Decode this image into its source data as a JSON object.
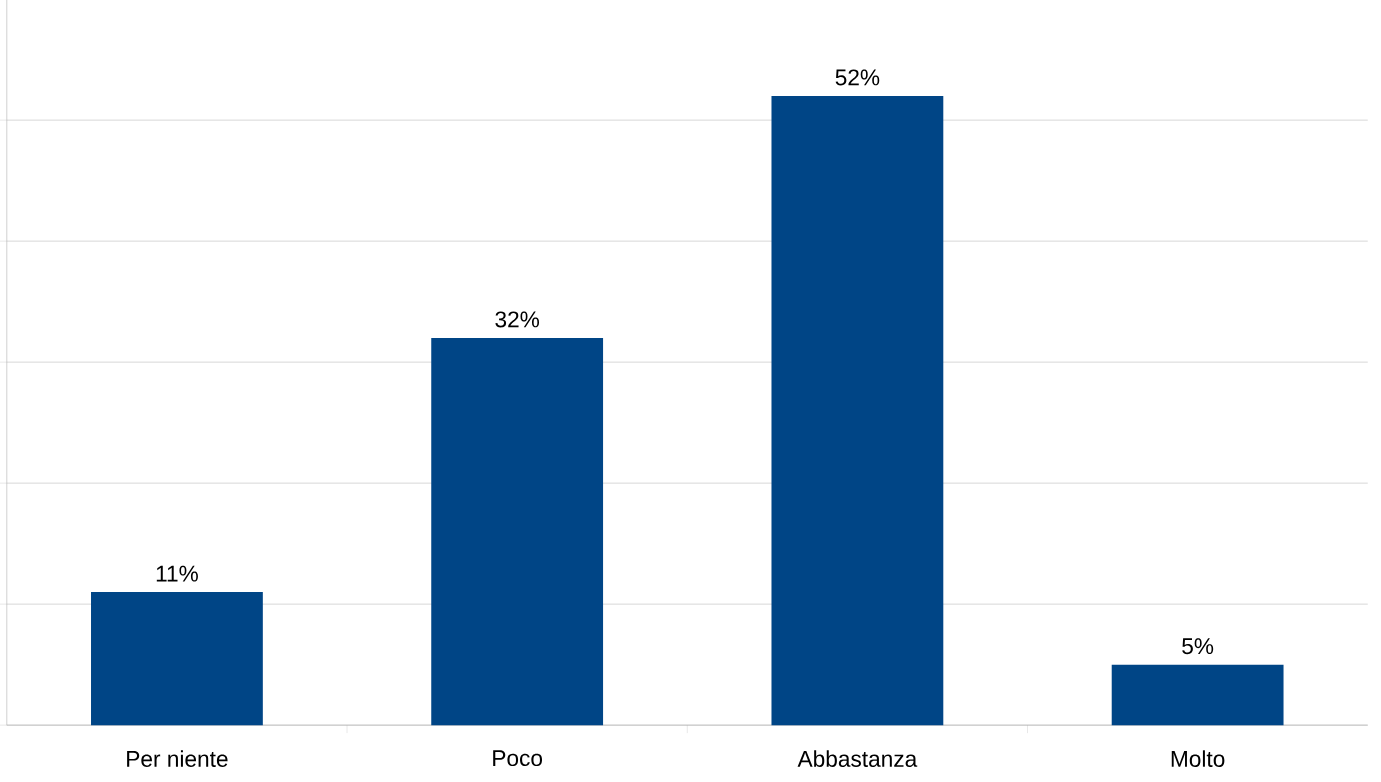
{
  "chart_data": {
    "type": "bar",
    "categories": [
      "Per niente",
      "Poco",
      "Abbastanza",
      "Molto"
    ],
    "values": [
      11,
      32,
      52,
      5
    ],
    "value_labels": [
      "11%",
      "32%",
      "52%",
      "5%"
    ],
    "color": "#004586",
    "ylim": [
      0,
      60
    ],
    "yticks": [
      {
        "value": 0,
        "label": null
      },
      {
        "value": 10,
        "label": null
      },
      {
        "value": 20,
        "label": null
      },
      {
        "value": 30,
        "label": null
      },
      {
        "value": 40,
        "label": null
      },
      {
        "value": 50,
        "label": null
      },
      {
        "value": 60,
        "label": null
      }
    ],
    "tick_labels": "x",
    "grid": "y"
  }
}
